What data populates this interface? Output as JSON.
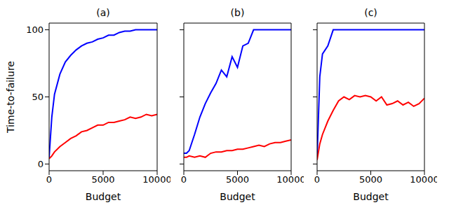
{
  "chart_data": [
    {
      "type": "line",
      "title": "(a)",
      "x_label": "Budget",
      "y_label": "Time-to-failure",
      "x": [
        0,
        250,
        500,
        1000,
        1500,
        2000,
        2500,
        3000,
        3500,
        4000,
        4500,
        5000,
        5500,
        6000,
        6500,
        7000,
        7500,
        8000,
        8500,
        9000,
        9500,
        10000
      ],
      "series": [
        {
          "color": "#0000ff",
          "values": [
            5,
            35,
            52,
            67,
            76,
            81,
            85,
            88,
            90,
            91,
            93,
            94,
            96,
            96,
            98,
            99,
            99,
            100,
            100,
            100,
            100,
            100
          ]
        },
        {
          "color": "#ff0000",
          "values": [
            4,
            6,
            9,
            13,
            16,
            19,
            21,
            24,
            25,
            27,
            29,
            29,
            31,
            31,
            32,
            33,
            35,
            34,
            35,
            37,
            36,
            37
          ]
        }
      ],
      "xlim": [
        0,
        10000
      ],
      "xticks": [
        0,
        5000,
        10000
      ],
      "ylim": [
        -5,
        105
      ],
      "yticks": [
        0,
        50,
        100
      ],
      "grid": false
    },
    {
      "type": "line",
      "title": "(b)",
      "x_label": "Budget",
      "x": [
        0,
        250,
        500,
        1000,
        1500,
        2000,
        2500,
        3000,
        3500,
        4000,
        4500,
        5000,
        5500,
        6000,
        6500,
        7000,
        7500,
        8000,
        8500,
        9000,
        9500,
        10000
      ],
      "series": [
        {
          "color": "#0000ff",
          "values": [
            8,
            8,
            10,
            22,
            35,
            45,
            53,
            60,
            70,
            65,
            80,
            72,
            88,
            90,
            100,
            100,
            100,
            100,
            100,
            100,
            100,
            100
          ]
        },
        {
          "color": "#ff0000",
          "values": [
            5,
            5,
            6,
            5,
            6,
            5,
            8,
            9,
            9,
            10,
            10,
            11,
            11,
            12,
            13,
            14,
            13,
            15,
            16,
            16,
            17,
            18
          ]
        }
      ],
      "xlim": [
        0,
        10000
      ],
      "xticks": [
        0,
        5000,
        10000
      ],
      "ylim": [
        -5,
        105
      ],
      "yticks": [
        0,
        50,
        100
      ],
      "grid": false,
      "tick_labels": "x"
    },
    {
      "type": "line",
      "title": "(c)",
      "x_label": "Budget",
      "x": [
        0,
        250,
        500,
        1000,
        1500,
        2000,
        2500,
        3000,
        3500,
        4000,
        4500,
        5000,
        5500,
        6000,
        6500,
        7000,
        7500,
        8000,
        8500,
        9000,
        9500,
        10000
      ],
      "series": [
        {
          "color": "#0000ff",
          "values": [
            5,
            65,
            82,
            88,
            100,
            100,
            100,
            100,
            100,
            100,
            100,
            100,
            100,
            100,
            100,
            100,
            100,
            100,
            100,
            100,
            100,
            100
          ]
        },
        {
          "color": "#ff0000",
          "values": [
            3,
            15,
            22,
            32,
            40,
            47,
            50,
            48,
            51,
            50,
            51,
            50,
            47,
            50,
            44,
            45,
            47,
            44,
            46,
            43,
            45,
            49
          ]
        }
      ],
      "xlim": [
        0,
        10000
      ],
      "xticks": [
        0,
        5000,
        10000
      ],
      "ylim": [
        -5,
        105
      ],
      "yticks": [
        0,
        50,
        100
      ],
      "grid": false,
      "tick_labels": "x"
    }
  ]
}
